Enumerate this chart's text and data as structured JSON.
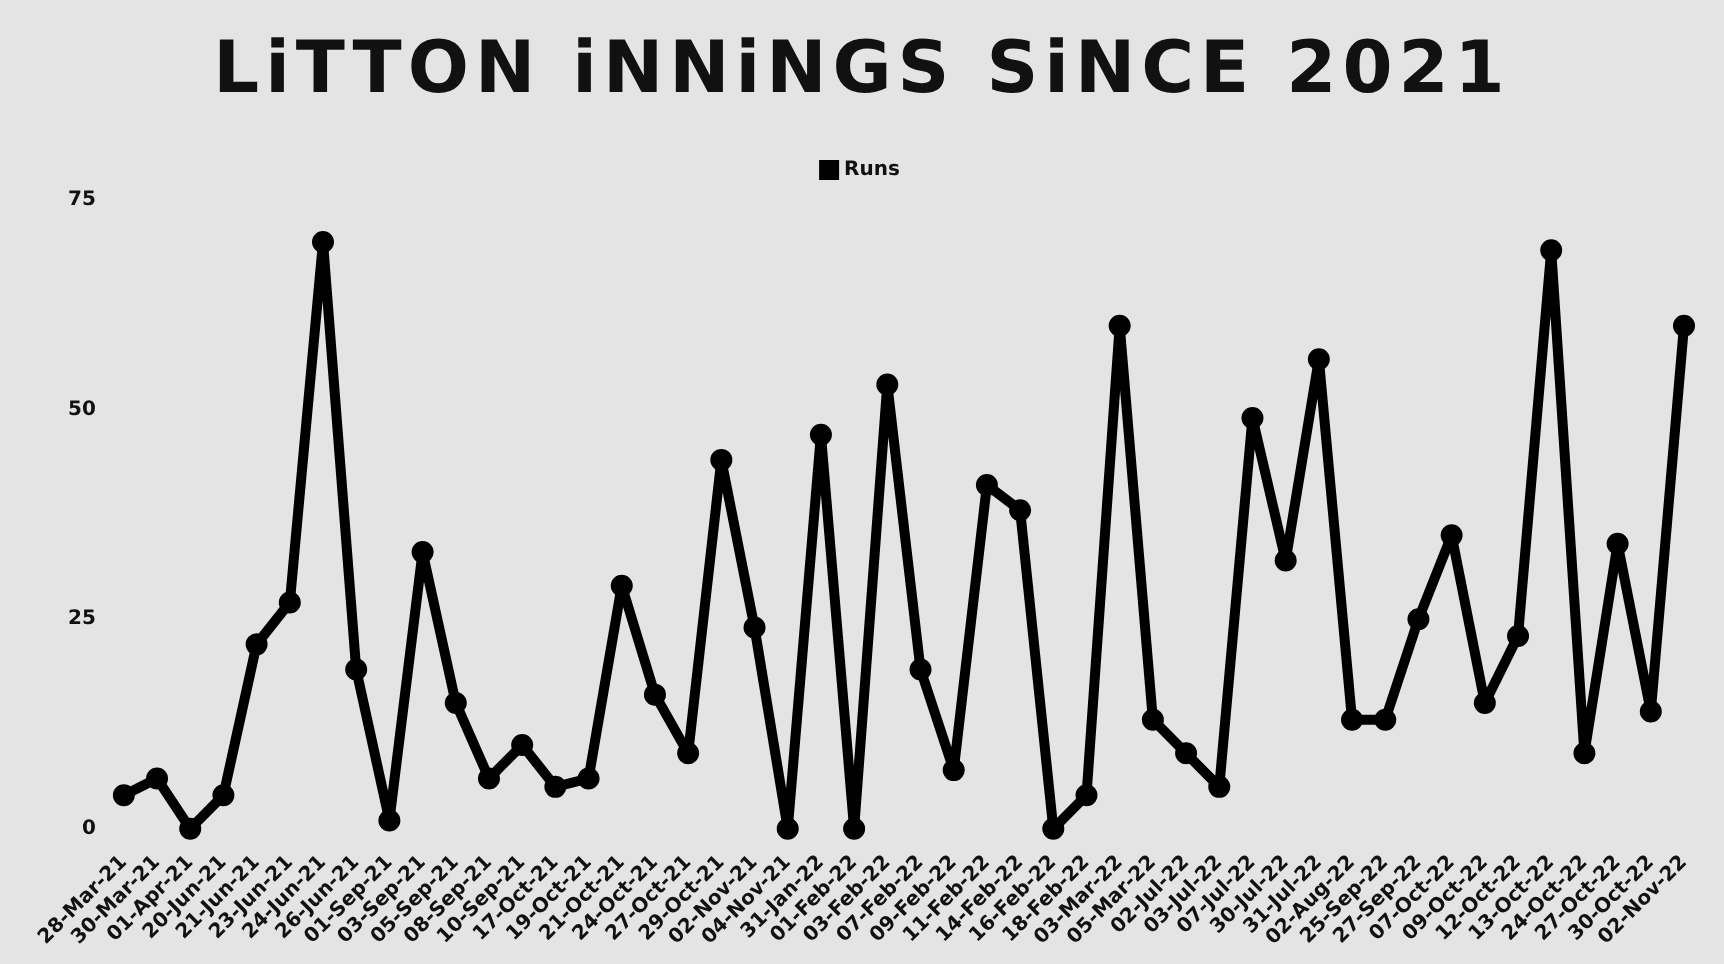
{
  "chart_data": {
    "type": "line",
    "title": "LiTTON iNNiNGS SiNCE 2021",
    "categories": [
      "28-Mar-21",
      "30-Mar-21",
      "01-Apr-21",
      "20-Jun-21",
      "21-Jun-21",
      "23-Jun-21",
      "24-Jun-21",
      "26-Jun-21",
      "01-Sep-21",
      "03-Sep-21",
      "05-Sep-21",
      "08-Sep-21",
      "10-Sep-21",
      "17-Oct-21",
      "19-Oct-21",
      "21-Oct-21",
      "24-Oct-21",
      "27-Oct-21",
      "29-Oct-21",
      "02-Nov-21",
      "04-Nov-21",
      "31-Jan-22",
      "01-Feb-22",
      "03-Feb-22",
      "07-Feb-22",
      "09-Feb-22",
      "11-Feb-22",
      "14-Feb-22",
      "16-Feb-22",
      "18-Feb-22",
      "03-Mar-22",
      "05-Mar-22",
      "02-Jul-22",
      "03-Jul-22",
      "07-Jul-22",
      "30-Jul-22",
      "31-Jul-22",
      "02-Aug-22",
      "25-Sep-22",
      "27-Sep-22",
      "07-Oct-22",
      "09-Oct-22",
      "12-Oct-22",
      "13-Oct-22",
      "24-Oct-22",
      "27-Oct-22",
      "30-Oct-22",
      "02-Nov-22"
    ],
    "series": [
      {
        "name": "Runs",
        "color": "#000000",
        "values": [
          4,
          6,
          0,
          4,
          22,
          27,
          70,
          19,
          1,
          33,
          15,
          6,
          10,
          5,
          6,
          29,
          16,
          9,
          44,
          24,
          0,
          47,
          0,
          53,
          19,
          7,
          41,
          38,
          0,
          4,
          60,
          13,
          9,
          5,
          49,
          32,
          56,
          13,
          13,
          25,
          35,
          15,
          23,
          69,
          9,
          34,
          14,
          60
        ]
      }
    ],
    "ylim": [
      0,
      75
    ],
    "yticks": [
      0,
      25,
      50,
      75
    ],
    "grid": false,
    "legend": "top",
    "marker": "circle",
    "line_style": "solid"
  }
}
